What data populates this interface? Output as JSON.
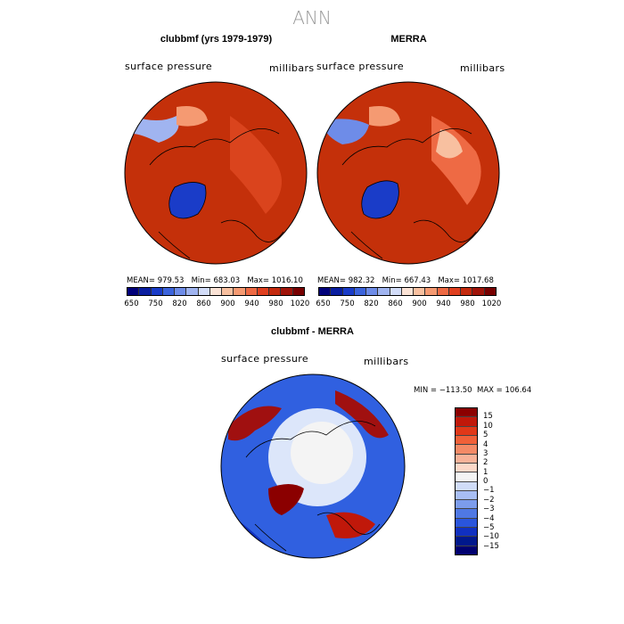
{
  "main_title": "ANN",
  "colors": {
    "model_fill": "#c4300a",
    "ice_blue": "#1f45c8",
    "diff_blue": "#3060e0",
    "diff_red": "#a01010"
  },
  "panels": [
    {
      "title": "clubbmf (yrs 1979-1979)",
      "field": "surface pressure",
      "units": "millibars",
      "mean_label": "MEAN= 979.53",
      "min_label": "Min= 683.03",
      "max_label": "Max= 1016.10"
    },
    {
      "title": "MERRA",
      "field": "surface pressure",
      "units": "millibars",
      "mean_label": "MEAN= 982.32",
      "min_label": "Min= 667.43",
      "max_label": "Max= 1017.68"
    }
  ],
  "colorbar": {
    "colors": [
      "#00007a",
      "#0a1ea0",
      "#1a3cc8",
      "#3c64dc",
      "#6e8ce8",
      "#a0b4f0",
      "#d2dcf8",
      "#fbe3d6",
      "#f8c0a0",
      "#f59a72",
      "#ee6a44",
      "#e04020",
      "#c42a0e",
      "#a0140a",
      "#780000"
    ],
    "ticks": [
      "650",
      "750",
      "820",
      "860",
      "900",
      "940",
      "980",
      "1020"
    ]
  },
  "diff_panel": {
    "title": "clubbmf - MERRA",
    "field": "surface pressure",
    "units": "millibars",
    "minmax_label": "MIN = −113.50  MAX = 106.64"
  },
  "diff_colorbar": {
    "colors": [
      "#8b0000",
      "#c0180a",
      "#e03818",
      "#f06038",
      "#f48a66",
      "#f8b298",
      "#fcd8c8",
      "#f4f4f4",
      "#d0dcf8",
      "#a8bef4",
      "#7c9cec",
      "#4f78e4",
      "#2a55dc",
      "#1030c0",
      "#00188c",
      "#000070"
    ],
    "ticks": [
      "15",
      "10",
      "5",
      "4",
      "3",
      "2",
      "1",
      "0",
      "−1",
      "−2",
      "−3",
      "−4",
      "−5",
      "−10",
      "−15"
    ]
  },
  "chart_data": [
    {
      "type": "heatmap",
      "title": "clubbmf (yrs 1979-1979)",
      "variable": "surface pressure",
      "units": "millibars",
      "projection": "north polar stereographic",
      "mean": 979.53,
      "min": 683.03,
      "max": 1016.1,
      "levels": [
        650,
        750,
        820,
        860,
        900,
        940,
        980,
        1020
      ]
    },
    {
      "type": "heatmap",
      "title": "MERRA",
      "variable": "surface pressure",
      "units": "millibars",
      "projection": "north polar stereographic",
      "mean": 982.32,
      "min": 667.43,
      "max": 1017.68,
      "levels": [
        650,
        750,
        820,
        860,
        900,
        940,
        980,
        1020
      ]
    },
    {
      "type": "heatmap",
      "title": "clubbmf - MERRA",
      "variable": "surface pressure",
      "units": "millibars",
      "projection": "north polar stereographic",
      "min": -113.5,
      "max": 106.64,
      "levels": [
        -15,
        -10,
        -5,
        -4,
        -3,
        -2,
        -1,
        0,
        1,
        2,
        3,
        4,
        5,
        10,
        15
      ]
    }
  ]
}
